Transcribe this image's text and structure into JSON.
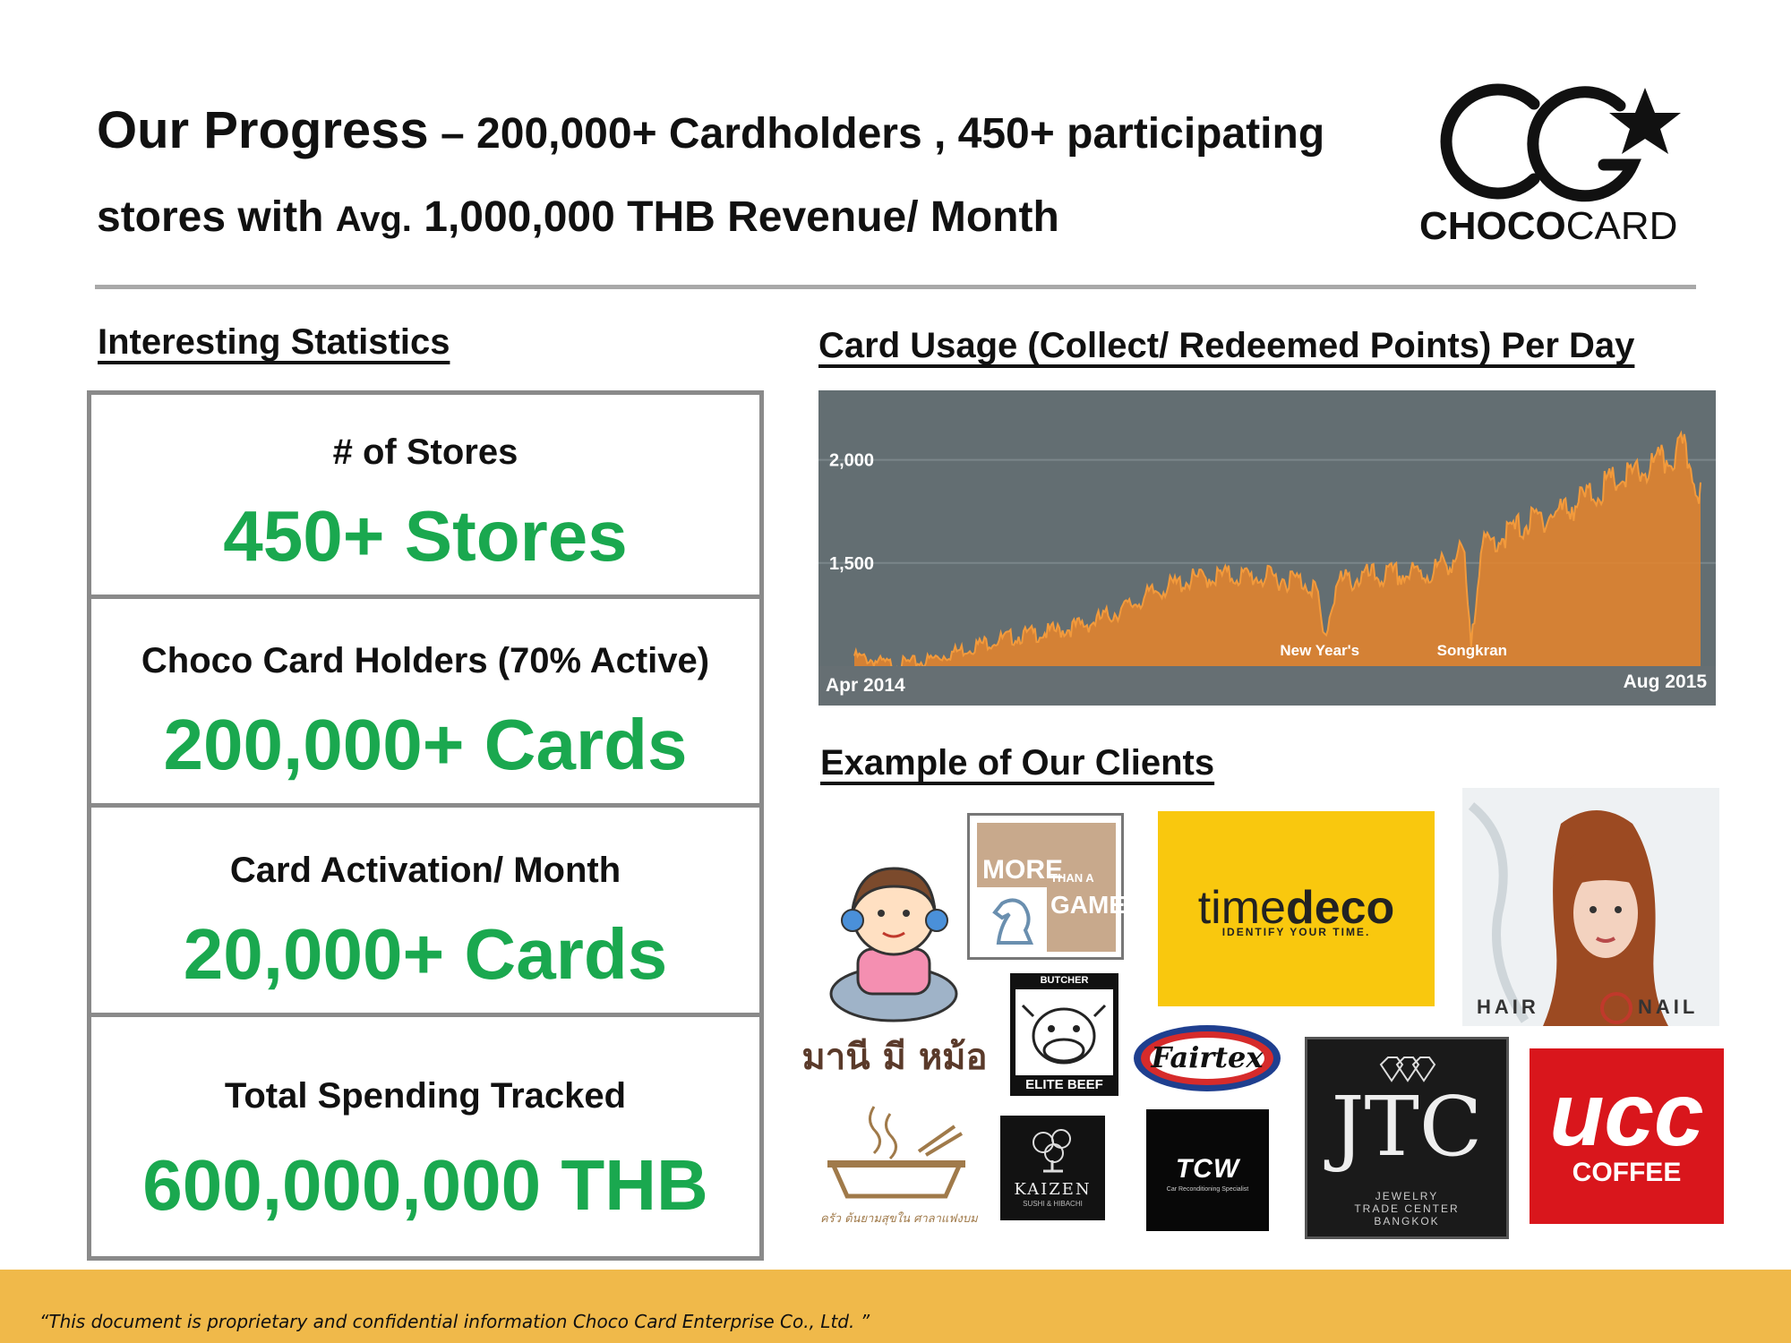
{
  "header": {
    "line1_big": "Our Progress",
    "line1_rest": " – 200,000+ Cardholders , 450+ participating",
    "line2_start": "stores with ",
    "line2_avg": "Avg.",
    "line2_rest": " 1,000,000 THB Revenue/ Month"
  },
  "brand": {
    "name_bold": "CHOCO",
    "name_light": "CARD",
    "logo_letters": "CG"
  },
  "statistics": {
    "heading": "Interesting Statistics",
    "items": [
      {
        "label": "# of Stores",
        "value": "450+ Stores"
      },
      {
        "label": "Choco Card Holders (70% Active)",
        "value": "200,000+ Cards"
      },
      {
        "label": "Card Activation/ Month",
        "value": "20,000+ Cards"
      },
      {
        "label": "Total Spending Tracked",
        "value": "600,000,000 THB"
      }
    ]
  },
  "chart_data": {
    "type": "area",
    "title": "Card Usage (Collect/ Redeemed Points) Per Day",
    "x_start_label": "Apr 2014",
    "x_end_label": "Aug 2015",
    "ylim": [
      1000,
      2250
    ],
    "yticks": [
      "2,000",
      "1,500"
    ],
    "ytick_values": [
      2000,
      1500
    ],
    "grid": true,
    "annotations": [
      {
        "label": "New Year's",
        "position": 0.55
      },
      {
        "label": "Songkran",
        "position": 0.73
      }
    ],
    "x": [
      0.0,
      0.04,
      0.08,
      0.12,
      0.16,
      0.2,
      0.24,
      0.28,
      0.32,
      0.36,
      0.4,
      0.44,
      0.48,
      0.52,
      0.545,
      0.555,
      0.57,
      0.6,
      0.64,
      0.68,
      0.72,
      0.728,
      0.74,
      0.76,
      0.8,
      0.84,
      0.88,
      0.9,
      0.92,
      0.94,
      0.96,
      0.98,
      1.0
    ],
    "values": [
      1050,
      1010,
      1020,
      1070,
      1120,
      1150,
      1170,
      1210,
      1280,
      1370,
      1420,
      1440,
      1430,
      1420,
      1390,
      1120,
      1400,
      1430,
      1440,
      1450,
      1550,
      1100,
      1560,
      1620,
      1700,
      1760,
      1850,
      1900,
      1920,
      1960,
      2000,
      2050,
      1850
    ],
    "area_color": "#e8852a",
    "background_color": "#636e72"
  },
  "clients": {
    "heading": "Example of Our Clients",
    "mani": {
      "text": "มานี มี หม้อ"
    },
    "more_than_a_game": {
      "line1": "MORE",
      "line2": "THAN A",
      "line3": "GAME"
    },
    "timedeco": {
      "name_a": "time",
      "name_b": "deco",
      "tagline": "IDENTIFY YOUR TIME."
    },
    "hair_nail": {
      "text_a": "HAIR",
      "text_b": "NAIL"
    },
    "elite_beef": {
      "top": "BUTCHER",
      "bottom": "ELITE BEEF"
    },
    "fairtex": {
      "text": "Fairtex"
    },
    "kaizen": {
      "name": "KAIZEN",
      "sub": "SUSHI & HIBACHI"
    },
    "tcw": {
      "name": "TCW",
      "sub": "Car Reconditioning Specialist"
    },
    "jtc": {
      "name": "JTC",
      "sub1": "JEWELRY",
      "sub2": "TRADE CENTER",
      "sub3": "BANGKOK"
    },
    "ucc": {
      "name": "ucc",
      "sub": "COFFEE"
    },
    "thai_pot": {
      "text": "ครัว ต้นยามสุขใน ศาลาแฟงบม"
    }
  },
  "footer": {
    "disclaimer": "“This document is proprietary and confidential information Choco Card Enterprise Co., Ltd. ”"
  },
  "colors": {
    "stat_green": "#1aa84f",
    "footer_band": "#f0b94a",
    "timedeco_yellow": "#f9c80e",
    "ucc_red": "#d9161c"
  }
}
